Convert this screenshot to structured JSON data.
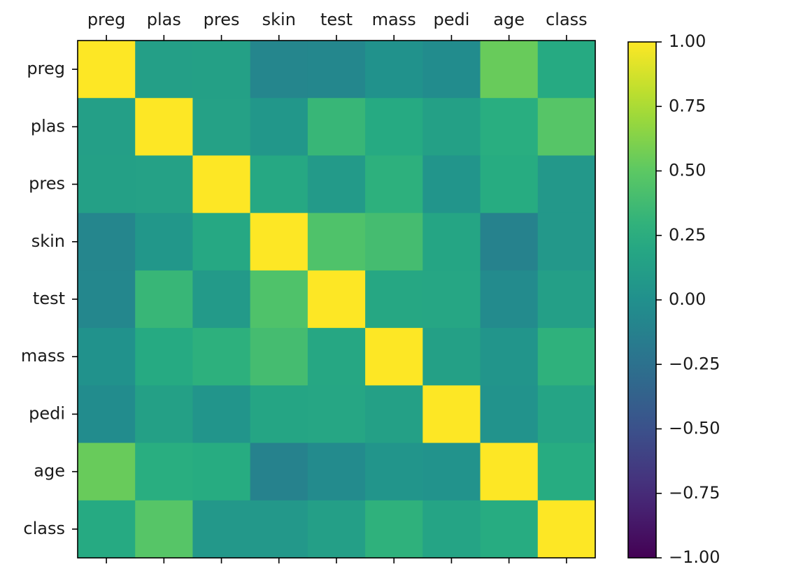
{
  "chart_data": {
    "type": "heatmap",
    "title": "",
    "xlabel": "",
    "ylabel": "",
    "x_labels": [
      "preg",
      "plas",
      "pres",
      "skin",
      "test",
      "mass",
      "pedi",
      "age",
      "class"
    ],
    "y_labels": [
      "preg",
      "plas",
      "pres",
      "skin",
      "test",
      "mass",
      "pedi",
      "age",
      "class"
    ],
    "x_tick_position": "top",
    "values": [
      [
        1.0,
        0.13,
        0.14,
        -0.08,
        -0.07,
        0.02,
        -0.03,
        0.54,
        0.22
      ],
      [
        0.13,
        1.0,
        0.15,
        0.06,
        0.33,
        0.22,
        0.14,
        0.26,
        0.47
      ],
      [
        0.14,
        0.15,
        1.0,
        0.21,
        0.09,
        0.28,
        0.04,
        0.24,
        0.07
      ],
      [
        -0.08,
        0.06,
        0.21,
        1.0,
        0.44,
        0.39,
        0.18,
        -0.11,
        0.07
      ],
      [
        -0.07,
        0.33,
        0.09,
        0.44,
        1.0,
        0.2,
        0.19,
        -0.04,
        0.13
      ],
      [
        0.02,
        0.22,
        0.28,
        0.39,
        0.2,
        1.0,
        0.14,
        0.04,
        0.29
      ],
      [
        -0.03,
        0.14,
        0.04,
        0.18,
        0.19,
        0.14,
        1.0,
        0.03,
        0.17
      ],
      [
        0.54,
        0.26,
        0.24,
        -0.11,
        -0.04,
        0.04,
        0.03,
        1.0,
        0.24
      ],
      [
        0.22,
        0.47,
        0.07,
        0.07,
        0.13,
        0.29,
        0.17,
        0.24,
        1.0
      ]
    ],
    "colormap": "viridis",
    "vmin": -1.0,
    "vmax": 1.0,
    "colorbar": {
      "ticks": [
        1.0,
        0.75,
        0.5,
        0.25,
        0.0,
        -0.25,
        -0.5,
        -0.75,
        -1.0
      ],
      "tick_labels": [
        "1.00",
        "0.75",
        "0.50",
        "0.25",
        "0.00",
        "−0.25",
        "−0.50",
        "−0.75",
        "−1.00"
      ]
    },
    "grid": false,
    "legend": "none"
  }
}
